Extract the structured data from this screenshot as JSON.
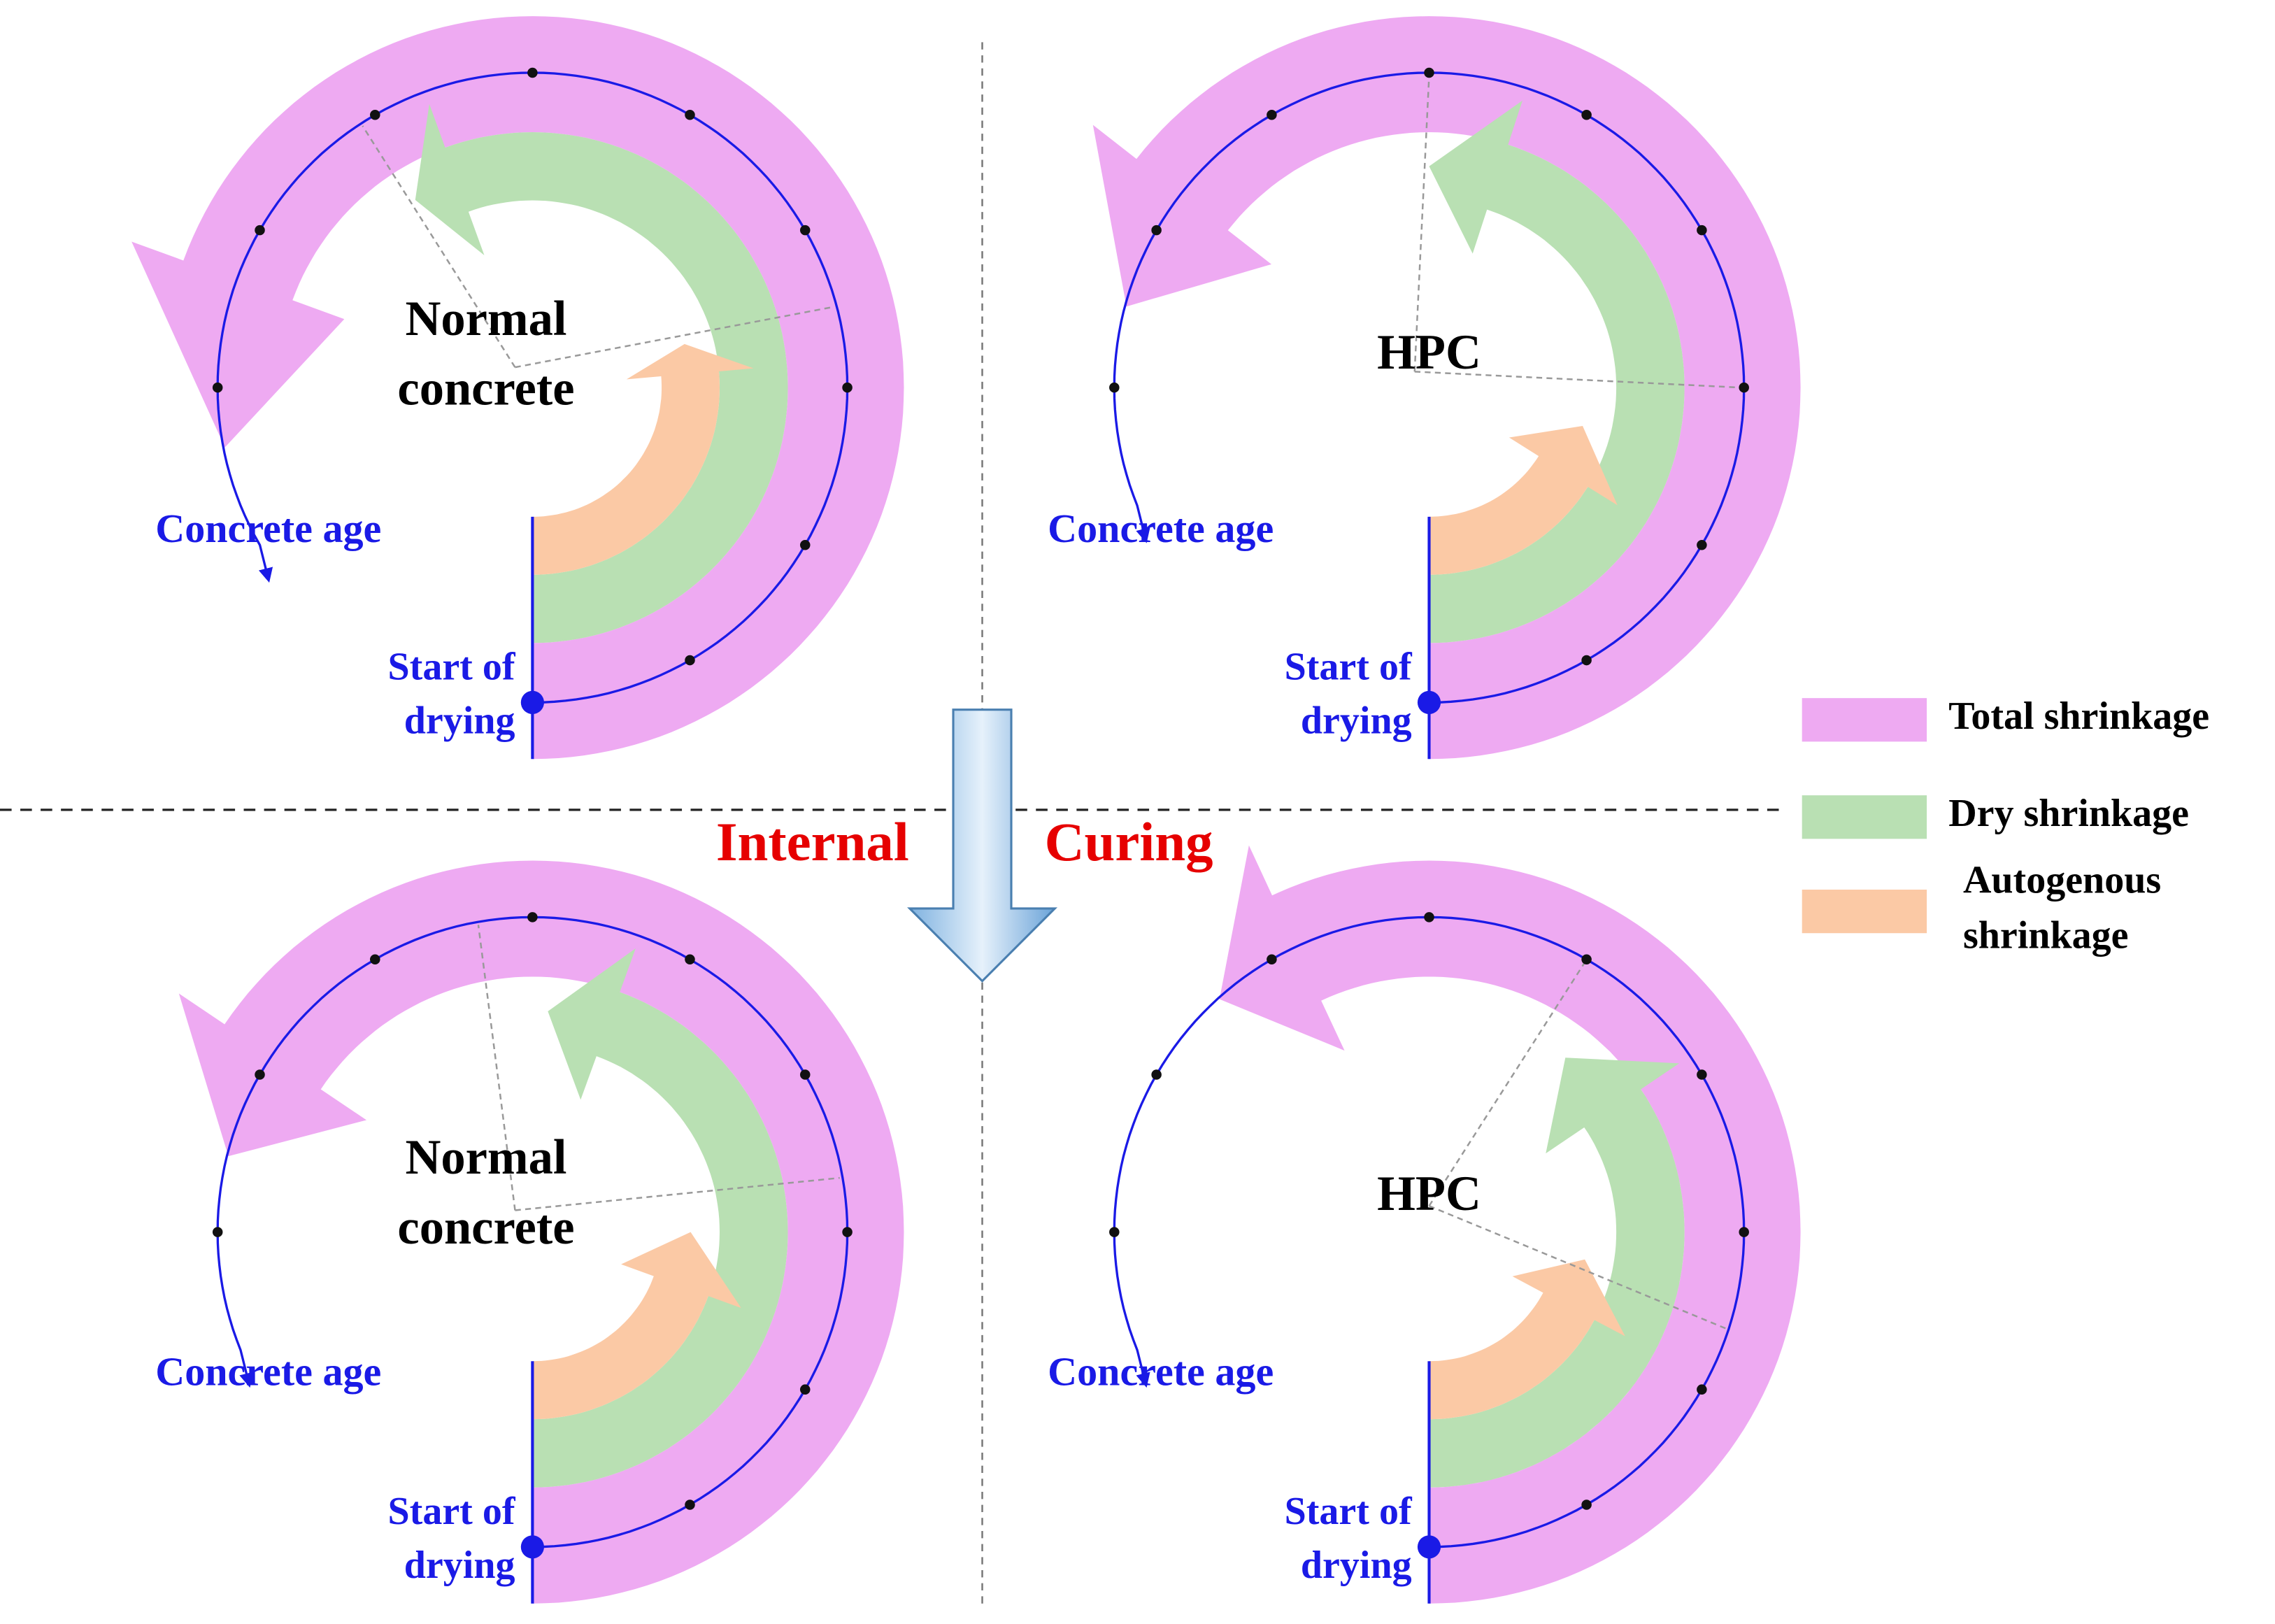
{
  "panels": [
    {
      "title_lines": [
        "Normal",
        "concrete"
      ],
      "age_label": "Concrete age",
      "start_lines": [
        "Start of",
        "drying"
      ]
    },
    {
      "title_lines": [
        "HPC"
      ],
      "age_label": "Concrete age",
      "start_lines": [
        "Start of",
        "drying"
      ]
    },
    {
      "title_lines": [
        "Normal",
        "concrete"
      ],
      "age_label": "Concrete age",
      "start_lines": [
        "Start of",
        "drying"
      ]
    },
    {
      "title_lines": [
        "HPC"
      ],
      "age_label": "Concrete age",
      "start_lines": [
        "Start of",
        "drying"
      ]
    }
  ],
  "curing_label": [
    "Internal",
    "Curing"
  ],
  "legend": [
    {
      "label_lines": [
        "Total shrinkage"
      ]
    },
    {
      "label_lines": [
        "Dry shrinkage"
      ]
    },
    {
      "label_lines": [
        "Autogenous",
        "shrinkage"
      ]
    }
  ]
}
